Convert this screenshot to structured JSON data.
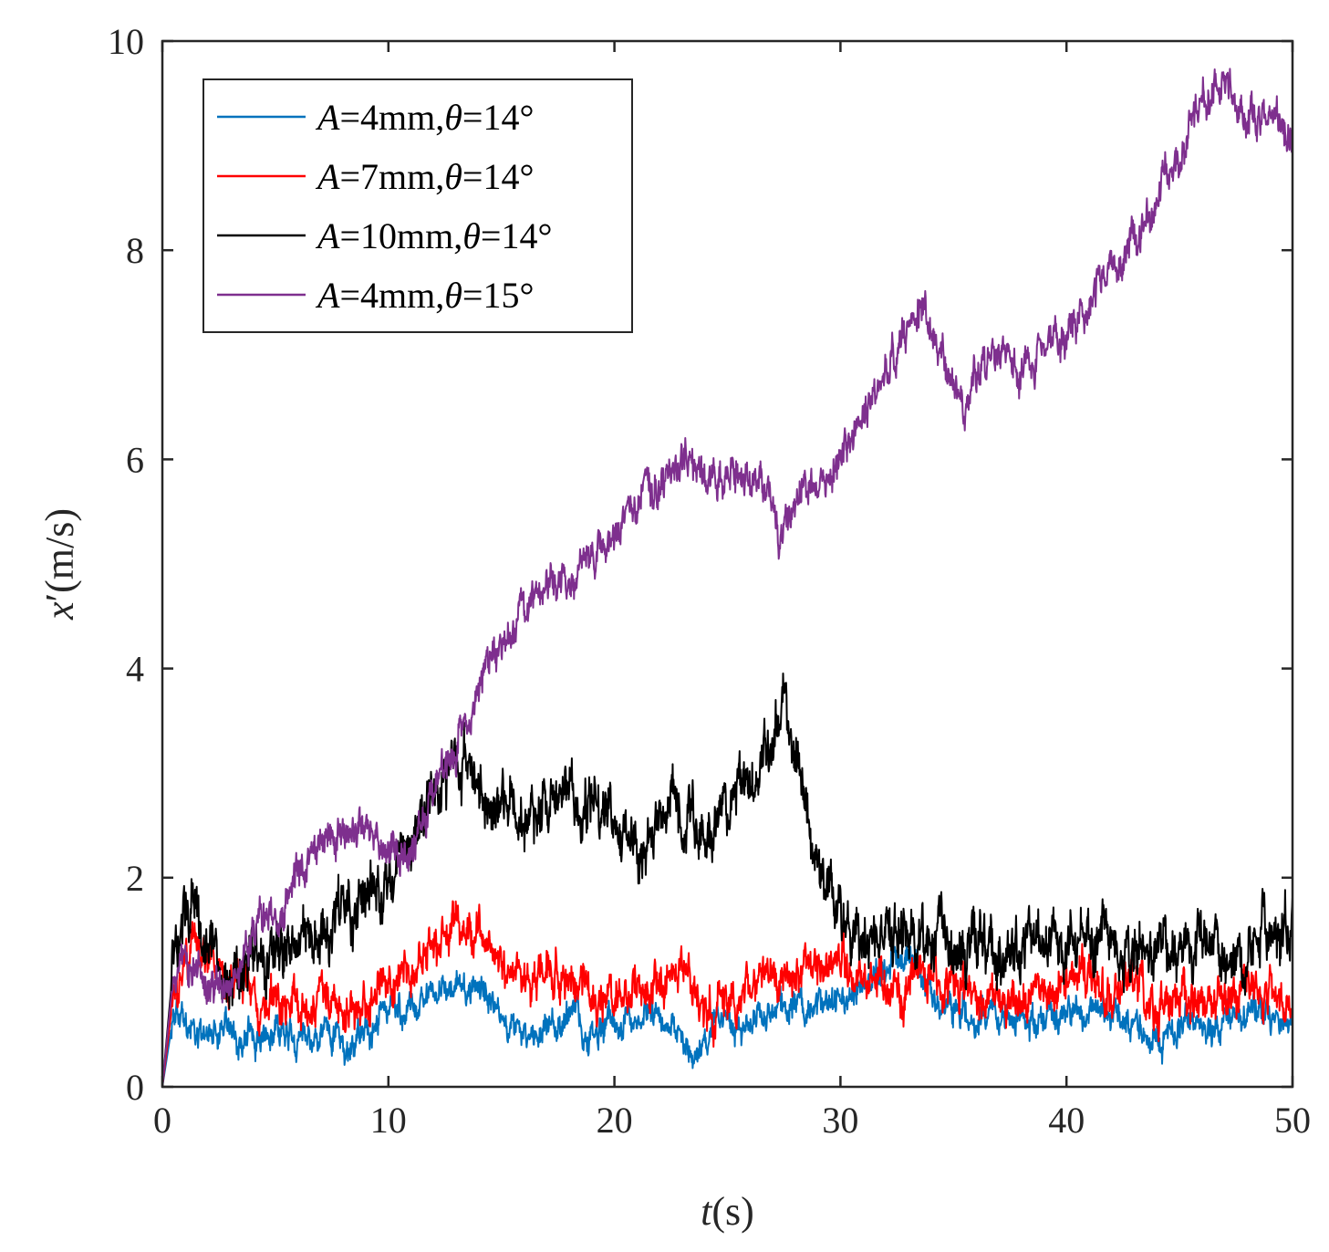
{
  "chart_data": {
    "type": "line",
    "title": "",
    "xlabel": {
      "var": "t",
      "unit": "(s)"
    },
    "ylabel": {
      "var": "x",
      "prime": "′",
      "unit": "(m/s)"
    },
    "xlim": [
      0,
      50
    ],
    "ylim": [
      0,
      10
    ],
    "xticks": [
      0,
      10,
      20,
      30,
      40,
      50
    ],
    "yticks": [
      0,
      2,
      4,
      6,
      8,
      10
    ],
    "grid": false,
    "legend_position": "top-left",
    "series": [
      {
        "name": "A=4mm,θ=14°",
        "legend": {
          "v1": "A",
          "p1": "=4mm,",
          "v2": "θ",
          "p2": "=14°"
        },
        "color": "#0072BD",
        "amp": 0.16,
        "x": [
          0,
          0.5,
          1,
          2,
          3,
          4,
          5,
          6,
          7,
          8,
          9,
          10,
          11,
          12,
          13,
          14,
          15,
          16,
          17,
          18,
          19,
          20,
          21,
          22,
          23,
          23.5,
          24,
          25,
          26,
          27,
          28,
          29,
          30,
          31,
          32,
          33,
          34,
          35,
          36,
          37,
          38,
          39,
          40,
          41,
          42,
          43,
          44,
          45,
          46,
          47,
          48,
          49,
          50
        ],
        "y": [
          0,
          0.7,
          0.6,
          0.5,
          0.5,
          0.45,
          0.5,
          0.45,
          0.5,
          0.4,
          0.55,
          0.7,
          0.8,
          0.9,
          0.95,
          0.95,
          0.6,
          0.45,
          0.6,
          0.65,
          0.55,
          0.6,
          0.65,
          0.7,
          0.5,
          0.3,
          0.5,
          0.6,
          0.6,
          0.7,
          0.75,
          0.8,
          0.85,
          1.0,
          1.15,
          1.2,
          0.9,
          0.75,
          0.65,
          0.7,
          0.65,
          0.6,
          0.7,
          0.75,
          0.7,
          0.65,
          0.4,
          0.6,
          0.65,
          0.6,
          0.7,
          0.7,
          0.65
        ]
      },
      {
        "name": "A=7mm,θ=14°",
        "legend": {
          "v1": "A",
          "p1": "=7mm,",
          "v2": "θ",
          "p2": "=14°"
        },
        "color": "#FF0000",
        "amp": 0.22,
        "x": [
          0,
          0.5,
          1,
          1.5,
          2,
          3,
          4,
          5,
          6,
          7,
          8,
          9,
          10,
          11,
          12,
          13,
          14,
          15,
          16,
          17,
          18,
          19,
          20,
          21,
          22,
          23,
          24,
          25,
          26,
          27,
          28,
          29,
          30,
          31,
          32,
          33,
          34,
          35,
          36,
          37,
          38,
          39,
          40,
          41,
          42,
          43,
          44,
          45,
          46,
          47,
          48,
          49,
          50
        ],
        "y": [
          0,
          0.9,
          1.2,
          1.4,
          1.2,
          1.0,
          0.9,
          0.85,
          0.85,
          0.8,
          0.75,
          0.8,
          0.95,
          1.15,
          1.3,
          1.55,
          1.5,
          1.1,
          1.0,
          1.15,
          1.1,
          0.9,
          0.85,
          0.95,
          1.0,
          1.1,
          0.75,
          0.85,
          0.95,
          1.05,
          1.1,
          1.2,
          1.2,
          1.0,
          0.95,
          0.95,
          1.05,
          1.0,
          0.85,
          0.85,
          0.8,
          0.9,
          1.0,
          1.05,
          0.95,
          0.9,
          0.75,
          0.8,
          0.85,
          0.85,
          0.9,
          0.95,
          0.85
        ]
      },
      {
        "name": "A=10mm,θ=14°",
        "legend": {
          "v1": "A",
          "p1": "=10mm,",
          "v2": "θ",
          "p2": "=14°"
        },
        "color": "#000000",
        "amp": 0.3,
        "x": [
          0,
          0.5,
          1,
          1.5,
          2,
          3,
          4,
          5,
          6,
          7,
          8,
          9,
          10,
          11,
          12,
          13,
          13.5,
          14,
          15,
          16,
          17,
          18,
          19,
          20,
          21,
          22,
          23,
          24,
          25,
          26,
          27,
          27.5,
          28,
          28.5,
          29,
          30,
          31,
          32,
          33,
          34,
          35,
          36,
          37,
          38,
          39,
          40,
          41,
          42,
          43,
          44,
          45,
          46,
          47,
          48,
          49,
          50
        ],
        "y": [
          0,
          1.2,
          1.6,
          1.7,
          1.4,
          1.1,
          1.2,
          1.3,
          1.4,
          1.5,
          1.6,
          1.75,
          1.9,
          2.3,
          2.8,
          3.1,
          3.2,
          2.9,
          2.7,
          2.6,
          2.7,
          2.8,
          2.7,
          2.5,
          2.4,
          2.5,
          2.6,
          2.4,
          2.6,
          2.9,
          3.3,
          3.5,
          3.2,
          2.6,
          2.0,
          1.7,
          1.35,
          1.45,
          1.6,
          1.45,
          1.35,
          1.3,
          1.35,
          1.3,
          1.35,
          1.35,
          1.4,
          1.4,
          1.3,
          1.35,
          1.3,
          1.4,
          1.35,
          1.35,
          1.4,
          1.45
        ]
      },
      {
        "name": "A=4mm,θ=15°",
        "legend": {
          "v1": "A",
          "p1": "=4mm,",
          "v2": "θ",
          "p2": "=15°"
        },
        "color": "#7E2F8E",
        "amp": 0.2,
        "x": [
          0,
          0.5,
          1,
          2,
          3,
          4,
          5,
          6,
          7,
          8,
          9,
          10,
          11,
          12,
          13,
          14,
          15,
          16,
          17,
          18,
          19,
          20,
          21,
          22,
          23,
          24,
          25,
          26,
          27,
          27.3,
          28,
          29,
          30,
          31,
          32,
          33,
          33.5,
          34,
          35,
          35.5,
          36,
          37,
          38,
          39,
          40,
          41,
          42,
          43,
          44,
          45,
          46,
          47,
          48,
          49,
          50
        ],
        "y": [
          0,
          1.1,
          1.2,
          1.0,
          1.1,
          1.4,
          1.7,
          2.0,
          2.3,
          2.4,
          2.5,
          2.2,
          2.3,
          2.9,
          3.3,
          3.8,
          4.2,
          4.5,
          4.8,
          4.8,
          5.0,
          5.3,
          5.6,
          5.8,
          6.0,
          5.9,
          5.8,
          5.8,
          5.6,
          5.3,
          5.6,
          5.8,
          6.0,
          6.4,
          6.9,
          7.3,
          7.5,
          7.2,
          6.8,
          6.5,
          6.8,
          7.1,
          6.9,
          7.0,
          7.2,
          7.5,
          7.8,
          8.1,
          8.5,
          8.9,
          9.4,
          9.6,
          9.2,
          9.3,
          9.2
        ]
      }
    ]
  }
}
